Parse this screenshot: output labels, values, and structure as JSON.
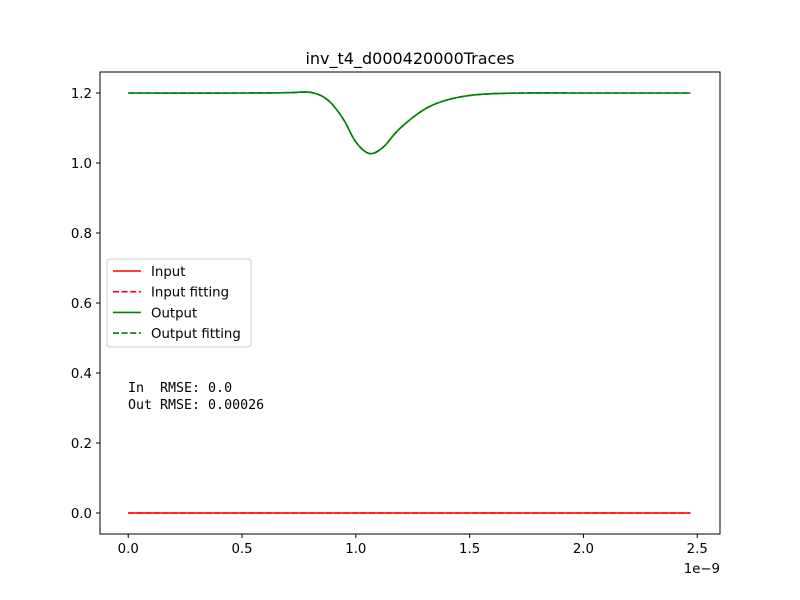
{
  "chart_data": {
    "type": "line",
    "title": "inv_t4_d000420000Traces",
    "xlabel": "",
    "ylabel": "",
    "x_offset_label": "1e−9",
    "xlim": [
      -0.124,
      2.6
    ],
    "ylim": [
      -0.06,
      1.26
    ],
    "x_ticks": [
      0,
      0.5,
      1,
      1.5,
      2,
      2.5
    ],
    "x_tick_labels": [
      "0.0",
      "0.5",
      "1.0",
      "1.5",
      "2.0",
      "2.5"
    ],
    "y_ticks": [
      0,
      0.2,
      0.4,
      0.6,
      0.8,
      1.0,
      1.2
    ],
    "y_tick_labels": [
      "0.0",
      "0.2",
      "0.4",
      "0.6",
      "0.8",
      "1.0",
      "1.2"
    ],
    "legend_position": "center-left",
    "series": [
      {
        "name": "Input",
        "color": "#ff0000",
        "dash": "solid",
        "x": [
          0,
          0.25,
          0.5,
          0.75,
          1.0,
          1.25,
          1.5,
          1.75,
          2.0,
          2.25,
          2.47
        ],
        "y": [
          0,
          0,
          0,
          0,
          0,
          0,
          0,
          0,
          0,
          0,
          0
        ]
      },
      {
        "name": "Input fitting",
        "color": "#ff0000",
        "dash": "dashed",
        "x": [
          0,
          0.25,
          0.5,
          0.75,
          1.0,
          1.25,
          1.5,
          1.75,
          2.0,
          2.25,
          2.47
        ],
        "y": [
          0,
          0,
          0,
          0,
          0,
          0,
          0,
          0,
          0,
          0,
          0
        ]
      },
      {
        "name": "Output",
        "color": "#008000",
        "dash": "solid",
        "x": [
          0,
          0.5,
          0.7,
          0.78,
          0.82,
          0.86,
          0.9,
          0.95,
          1.0,
          1.06,
          1.12,
          1.18,
          1.25,
          1.32,
          1.4,
          1.5,
          1.6,
          1.75,
          2.0,
          2.47
        ],
        "y": [
          1.2,
          1.2,
          1.201,
          1.203,
          1.199,
          1.188,
          1.165,
          1.12,
          1.06,
          1.027,
          1.045,
          1.09,
          1.13,
          1.16,
          1.18,
          1.193,
          1.198,
          1.2,
          1.2,
          1.2
        ]
      },
      {
        "name": "Output fitting",
        "color": "#008000",
        "dash": "dashed",
        "x": [
          0,
          0.5,
          0.7,
          0.78,
          0.82,
          0.86,
          0.9,
          0.95,
          1.0,
          1.06,
          1.12,
          1.18,
          1.25,
          1.32,
          1.4,
          1.5,
          1.6,
          1.75,
          2.0,
          2.47
        ],
        "y": [
          1.2,
          1.2,
          1.201,
          1.203,
          1.199,
          1.188,
          1.165,
          1.12,
          1.06,
          1.027,
          1.045,
          1.09,
          1.13,
          1.16,
          1.18,
          1.193,
          1.198,
          1.2,
          1.2,
          1.2
        ]
      }
    ],
    "annotations": [
      "In  RMSE: 0.0",
      "Out RMSE: 0.00026"
    ]
  }
}
